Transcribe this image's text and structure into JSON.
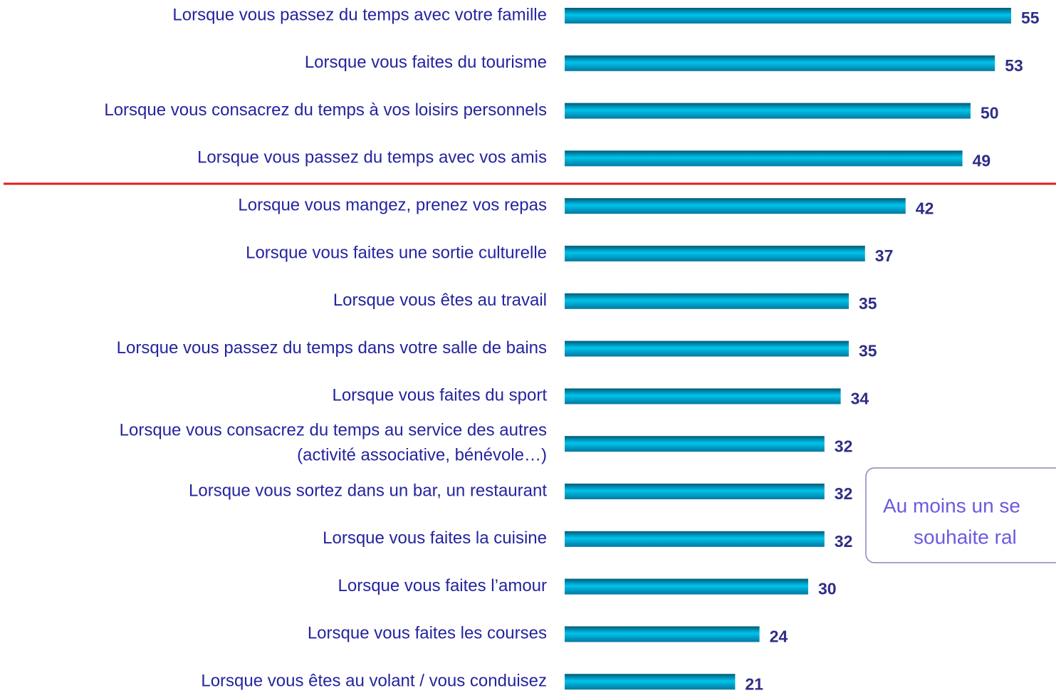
{
  "chart_data": {
    "type": "barh",
    "categories": [
      "Lorsque vous passez du temps avec votre famille",
      "Lorsque vous faites du tourisme",
      "Lorsque vous consacrez du temps à vos loisirs personnels",
      "Lorsque vous passez du temps avec vos amis",
      "Lorsque vous mangez, prenez vos repas",
      "Lorsque vous faites une sortie culturelle",
      "Lorsque vous êtes au travail",
      "Lorsque vous passez du temps dans votre salle de bains",
      "Lorsque vous faites du sport",
      "Lorsque vous consacrez du temps au service des autres\n(activité associative, bénévole…)",
      "Lorsque vous sortez dans un bar, un restaurant",
      "Lorsque vous faites la cuisine",
      "Lorsque vous faites l’amour",
      "Lorsque vous faites les courses",
      "Lorsque vous êtes au volant / vous conduisez"
    ],
    "values": [
      55,
      53,
      50,
      49,
      42,
      37,
      35,
      35,
      34,
      32,
      32,
      32,
      30,
      24,
      21
    ],
    "color": "#00c4ec",
    "annotation": [
      "Au moins un se",
      "souhaite ral"
    ]
  }
}
